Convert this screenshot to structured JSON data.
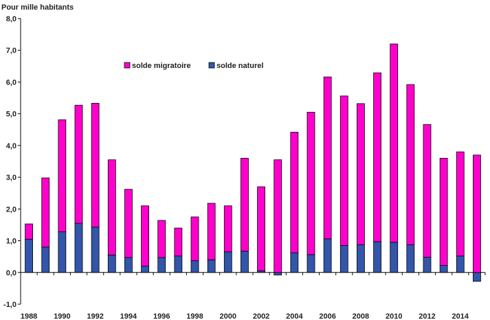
{
  "chart_data": {
    "type": "bar",
    "stacked": true,
    "ylabel": "Pour mille habitants",
    "xlabel": "",
    "ylim": [
      -1.0,
      8.0
    ],
    "y_ticks": [
      -1.0,
      0.0,
      1.0,
      2.0,
      3.0,
      4.0,
      5.0,
      6.0,
      7.0,
      8.0
    ],
    "y_tick_labels": [
      "-1,0",
      "0,0",
      "1,0",
      "2,0",
      "3,0",
      "4,0",
      "5,0",
      "6,0",
      "7,0",
      "8,0"
    ],
    "categories": [
      "1988",
      "1989",
      "1990",
      "1991",
      "1992",
      "1993",
      "1994",
      "1995",
      "1996",
      "1997",
      "1998",
      "1999",
      "2000",
      "2001",
      "2002",
      "2003",
      "2004",
      "2005",
      "2006",
      "2007",
      "2008",
      "2009",
      "2010",
      "2011",
      "2012",
      "2013",
      "2014",
      "2015"
    ],
    "x_tick_labels": [
      "1988",
      "",
      "1990",
      "",
      "1992",
      "",
      "1994",
      "",
      "1996",
      "",
      "1998",
      "",
      "2000",
      "",
      "2002",
      "",
      "2004",
      "",
      "2006",
      "",
      "2008",
      "",
      "2010",
      "",
      "2012",
      "",
      "2014",
      ""
    ],
    "grid": false,
    "legend_position": "top-center",
    "series": [
      {
        "name": "solde naturel",
        "color": "#3355AA",
        "values": [
          1.05,
          0.8,
          1.28,
          1.55,
          1.43,
          0.55,
          0.47,
          0.2,
          0.47,
          0.52,
          0.37,
          0.4,
          0.65,
          0.67,
          0.05,
          -0.08,
          0.62,
          0.56,
          1.06,
          0.85,
          0.87,
          0.97,
          0.95,
          0.87,
          0.48,
          0.22,
          0.52,
          -0.28
        ]
      },
      {
        "name": "solde migratoire",
        "color": "#FF00CC",
        "values": [
          0.48,
          2.18,
          3.53,
          3.72,
          3.9,
          3.0,
          2.15,
          1.9,
          1.17,
          0.88,
          1.38,
          1.78,
          1.45,
          2.93,
          2.65,
          3.55,
          3.8,
          4.49,
          5.1,
          4.71,
          4.45,
          5.32,
          6.25,
          5.05,
          4.18,
          3.38,
          3.28,
          3.7
        ]
      }
    ]
  }
}
